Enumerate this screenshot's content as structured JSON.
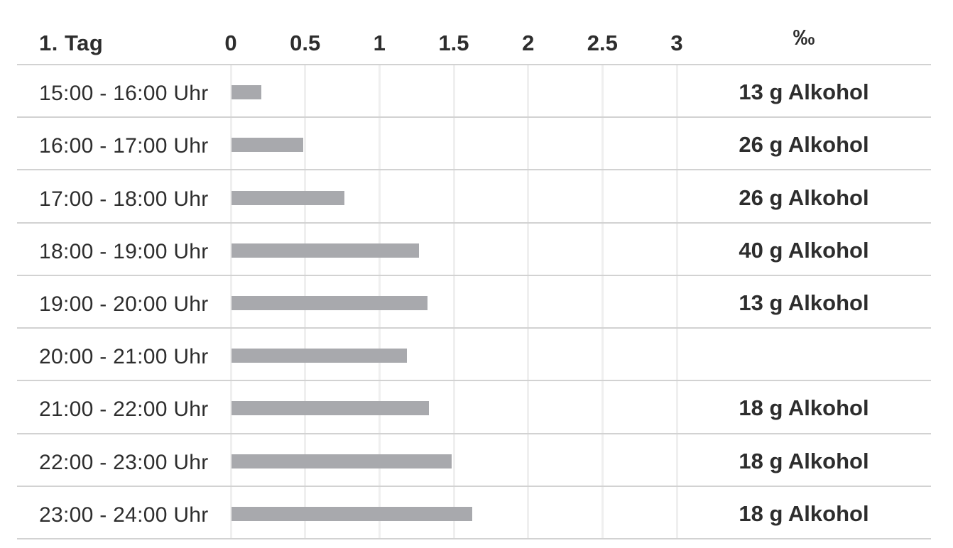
{
  "header": {
    "title": "1. Tag",
    "ticks": [
      "0",
      "0.5",
      "1",
      "1.5",
      "2",
      "2.5",
      "3"
    ],
    "unit_label": "‰"
  },
  "rows": [
    {
      "time": "15:00 - 16:00 Uhr",
      "promille": 0.2,
      "alcohol": "13 g Alkohol"
    },
    {
      "time": "16:00 - 17:00 Uhr",
      "promille": 0.48,
      "alcohol": "26 g Alkohol"
    },
    {
      "time": "17:00 - 18:00 Uhr",
      "promille": 0.76,
      "alcohol": "26 g Alkohol"
    },
    {
      "time": "18:00 - 19:00 Uhr",
      "promille": 1.26,
      "alcohol": "40 g Alkohol"
    },
    {
      "time": "19:00 - 20:00 Uhr",
      "promille": 1.32,
      "alcohol": "13 g Alkohol"
    },
    {
      "time": "20:00 - 21:00 Uhr",
      "promille": 1.18,
      "alcohol": ""
    },
    {
      "time": "21:00 - 22:00 Uhr",
      "promille": 1.33,
      "alcohol": "18 g Alkohol"
    },
    {
      "time": "22:00 - 23:00 Uhr",
      "promille": 1.48,
      "alcohol": "18 g Alkohol"
    },
    {
      "time": "23:00 - 24:00 Uhr",
      "promille": 1.62,
      "alcohol": "18 g Alkohol"
    }
  ],
  "colors": {
    "bar": "#a8a9ad",
    "grid": "#efefef",
    "separator": "#d2d2d2",
    "text": "#2d2d2d"
  },
  "chart_data": {
    "type": "bar",
    "orientation": "horizontal",
    "title": "1. Tag",
    "categories": [
      "15:00 - 16:00 Uhr",
      "16:00 - 17:00 Uhr",
      "17:00 - 18:00 Uhr",
      "18:00 - 19:00 Uhr",
      "19:00 - 20:00 Uhr",
      "20:00 - 21:00 Uhr",
      "21:00 - 22:00 Uhr",
      "22:00 - 23:00 Uhr",
      "23:00 - 24:00 Uhr"
    ],
    "values": [
      0.2,
      0.48,
      0.76,
      1.26,
      1.32,
      1.18,
      1.33,
      1.48,
      1.62
    ],
    "bar_labels": [
      "13 g Alkohol",
      "26 g Alkohol",
      "26 g Alkohol",
      "40 g Alkohol",
      "13 g Alkohol",
      "",
      "18 g Alkohol",
      "18 g Alkohol",
      "18 g Alkohol"
    ],
    "value_unit": "‰",
    "xlabel": "‰",
    "xlim": [
      0,
      3
    ],
    "xticks": [
      0,
      0.5,
      1,
      1.5,
      2,
      2.5,
      3
    ],
    "grid": true,
    "legend": false
  }
}
